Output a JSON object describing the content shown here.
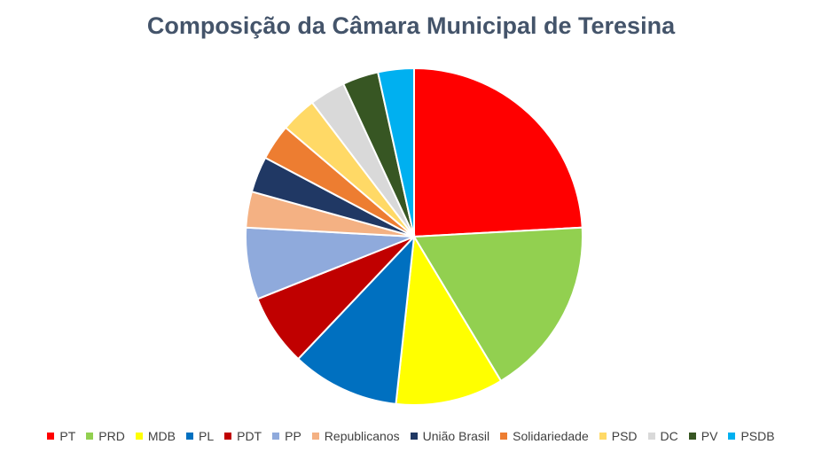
{
  "chart_data": {
    "type": "pie",
    "title": "Composição da Câmara Municipal de Teresina",
    "legend_position": "bottom",
    "slices": [
      {
        "label": "PT",
        "value": 7,
        "color": "#ff0000"
      },
      {
        "label": "PRD",
        "value": 5,
        "color": "#92d050"
      },
      {
        "label": "MDB",
        "value": 3,
        "color": "#ffff00"
      },
      {
        "label": "PL",
        "value": 3,
        "color": "#0070c0"
      },
      {
        "label": "PDT",
        "value": 2,
        "color": "#c00000"
      },
      {
        "label": "PP",
        "value": 2,
        "color": "#8faadc"
      },
      {
        "label": "Republicanos",
        "value": 1,
        "color": "#f4b183"
      },
      {
        "label": "União Brasil",
        "value": 1,
        "color": "#203864"
      },
      {
        "label": "Solidariedade",
        "value": 1,
        "color": "#ed7d31"
      },
      {
        "label": "PSD",
        "value": 1,
        "color": "#ffd966"
      },
      {
        "label": "DC",
        "value": 1,
        "color": "#d9d9d9"
      },
      {
        "label": "PV",
        "value": 1,
        "color": "#375623"
      },
      {
        "label": "PSDB",
        "value": 1,
        "color": "#00b0f0"
      }
    ]
  }
}
